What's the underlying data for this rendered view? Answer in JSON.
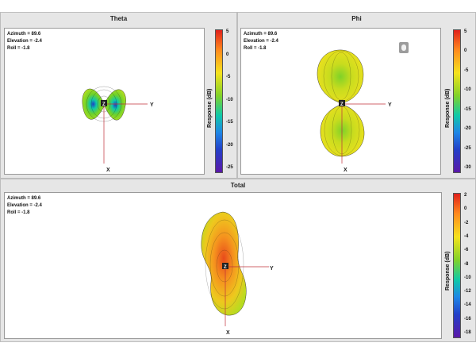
{
  "panels": {
    "theta": {
      "title": "Theta",
      "readout": {
        "azimuth": "Azimuth = 89.6",
        "elevation": "Elevation = -2.4",
        "roll": "Roll = -1.8"
      },
      "colorbar": {
        "label": "Response (dB)",
        "ticks": [
          "5",
          "0",
          "-5",
          "-10",
          "-15",
          "-20",
          "-25"
        ]
      },
      "axes": {
        "y": "Y",
        "x": "X",
        "z": "Z"
      }
    },
    "phi": {
      "title": "Phi",
      "readout": {
        "azimuth": "Azimuth = 89.6",
        "elevation": "Elevation = -2.4",
        "roll": "Roll = -1.8"
      },
      "colorbar": {
        "label": "Response (dB)",
        "ticks": [
          "5",
          "0",
          "-5",
          "-10",
          "-15",
          "-20",
          "-25",
          "-30"
        ]
      },
      "axes": {
        "y": "Y",
        "x": "X",
        "z": "Z"
      }
    },
    "total": {
      "title": "Total",
      "readout": {
        "azimuth": "Azimuth = 89.6",
        "elevation": "Elevation = -2.4",
        "roll": "Roll = -1.8"
      },
      "colorbar": {
        "label": "Response (dB)",
        "ticks": [
          "2",
          "0",
          "-2",
          "-4",
          "-6",
          "-8",
          "-10",
          "-12",
          "-14",
          "-16",
          "-18"
        ]
      },
      "axes": {
        "y": "Y",
        "x": "X",
        "z": "Z"
      }
    }
  },
  "icons": {
    "rotate_button": "hand-rotate-icon"
  },
  "colors": {
    "high": "#e0201c",
    "mid": "#f6e21e",
    "low": "#5a18a8"
  }
}
